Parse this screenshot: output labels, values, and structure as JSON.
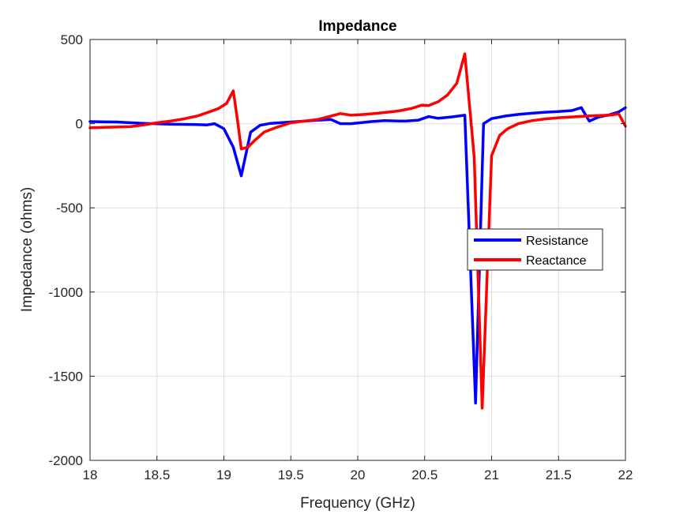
{
  "chart_data": {
    "type": "line",
    "title": "Impedance",
    "xlabel": "Frequency (GHz)",
    "ylabel": "Impedance (ohms)",
    "xlim": [
      18,
      22
    ],
    "ylim": [
      -2000,
      500
    ],
    "xticks": [
      "18",
      "18.5",
      "19",
      "19.5",
      "20",
      "20.5",
      "21",
      "21.5",
      "22"
    ],
    "yticks": [
      "500",
      "0",
      "-500",
      "-1000",
      "-1500",
      "-2000"
    ],
    "grid": true,
    "legend_position": "right",
    "series": [
      {
        "name": "Resistance",
        "color": "#0000ff",
        "x": [
          18,
          18.2,
          18.4,
          18.6,
          18.8,
          18.87,
          18.93,
          19.0,
          19.07,
          19.13,
          19.2,
          19.27,
          19.35,
          19.5,
          19.6,
          19.7,
          19.8,
          19.87,
          19.95,
          20.1,
          20.2,
          20.35,
          20.45,
          20.53,
          20.6,
          20.7,
          20.8,
          20.88,
          20.94,
          21.0,
          21.1,
          21.2,
          21.3,
          21.4,
          21.5,
          21.6,
          21.67,
          21.73,
          21.8,
          21.87,
          21.95,
          22.0
        ],
        "y": [
          12,
          10,
          2,
          -3,
          -5,
          -8,
          0,
          -30,
          -140,
          -310,
          -50,
          -10,
          2,
          10,
          15,
          20,
          25,
          0,
          0,
          12,
          18,
          15,
          20,
          42,
          32,
          40,
          50,
          -1660,
          0,
          30,
          45,
          55,
          62,
          68,
          72,
          78,
          95,
          15,
          40,
          50,
          70,
          95
        ]
      },
      {
        "name": "Reactance",
        "color": "#ff0000",
        "x": [
          18,
          18.1,
          18.2,
          18.3,
          18.4,
          18.5,
          18.6,
          18.7,
          18.8,
          18.9,
          18.96,
          19.02,
          19.07,
          19.1,
          19.13,
          19.18,
          19.23,
          19.3,
          19.4,
          19.5,
          19.6,
          19.7,
          19.8,
          19.87,
          19.95,
          20.05,
          20.15,
          20.3,
          20.4,
          20.48,
          20.53,
          20.6,
          20.67,
          20.74,
          20.8,
          20.87,
          20.93,
          21.0,
          21.06,
          21.12,
          21.2,
          21.3,
          21.4,
          21.5,
          21.6,
          21.7,
          21.8,
          21.9,
          21.95,
          22.0
        ],
        "y": [
          -25,
          -22,
          -20,
          -18,
          -8,
          5,
          15,
          28,
          45,
          72,
          90,
          120,
          195,
          30,
          -150,
          -140,
          -100,
          -50,
          -20,
          5,
          15,
          25,
          45,
          60,
          50,
          55,
          62,
          75,
          90,
          110,
          108,
          130,
          170,
          240,
          415,
          -200,
          -1690,
          -190,
          -70,
          -30,
          0,
          18,
          28,
          35,
          40,
          45,
          48,
          52,
          58,
          -15
        ]
      }
    ]
  }
}
